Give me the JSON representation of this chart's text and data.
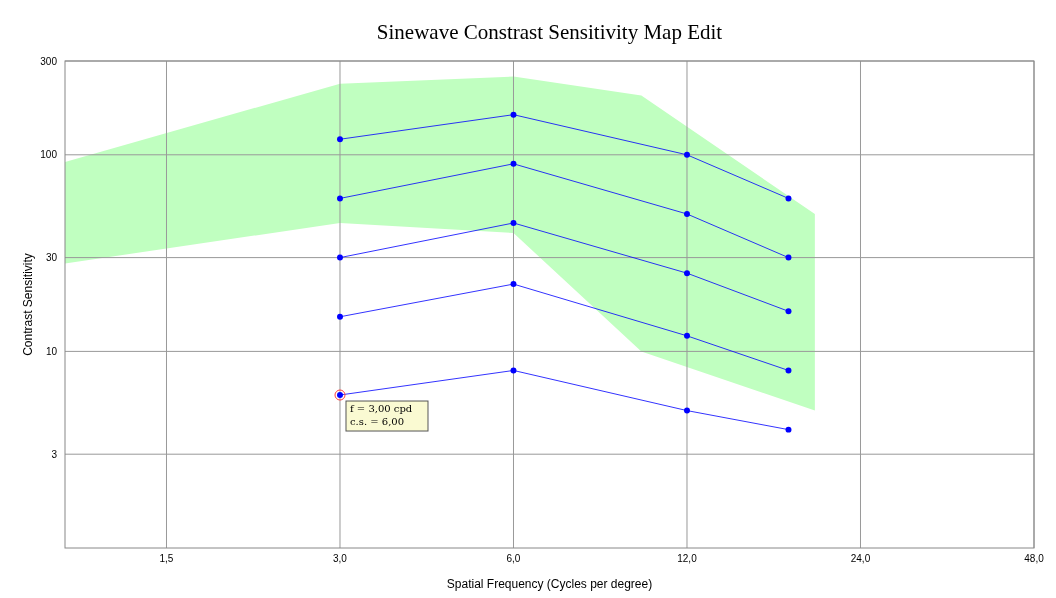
{
  "chart_data": {
    "type": "line",
    "title": "Sinewave Constrast Sensitivity Map Edit",
    "xlabel": "Spatial Frequency (Cycles per degree)",
    "ylabel": "Contrast Sensitivity",
    "log": "xy",
    "grid": true,
    "marker": "circle",
    "line_style": "solid",
    "xlim": [
      1,
      48
    ],
    "xticks": [
      {
        "value": 1.5,
        "label": "1,5"
      },
      {
        "value": 3,
        "label": "3,0"
      },
      {
        "value": 6,
        "label": "6,0"
      },
      {
        "value": 12,
        "label": "12,0"
      },
      {
        "value": 24,
        "label": "24,0"
      },
      {
        "value": 48,
        "label": "48,0"
      }
    ],
    "ylim": [
      1,
      300
    ],
    "yticks": [
      3,
      10,
      30,
      100,
      300
    ],
    "x": [
      3,
      6,
      12,
      18
    ],
    "series": [
      {
        "color": "#0000ff",
        "values": [
          120,
          160,
          100,
          60
        ]
      },
      {
        "color": "#0000ff",
        "values": [
          60,
          90,
          50,
          30
        ]
      },
      {
        "color": "#0000ff",
        "values": [
          30,
          45,
          25,
          16
        ]
      },
      {
        "color": "#0000ff",
        "values": [
          15,
          22,
          12,
          8
        ]
      },
      {
        "color": "#0000ff",
        "values": [
          6,
          8,
          5,
          4
        ]
      },
      {
        "color": "#c0ffc0",
        "x": [
          1,
          3,
          6,
          10,
          20
        ],
        "values": [
          null,
          null,
          null,
          null,
          null
        ],
        "lower": [
          28,
          45,
          40,
          10,
          5
        ],
        "upper": [
          92,
          230,
          250,
          200,
          50
        ]
      }
    ],
    "annotations": [
      {
        "text": "f = 3,00 cpd\nc.s. = 6,00",
        "x": 3,
        "y": 6
      }
    ]
  }
}
